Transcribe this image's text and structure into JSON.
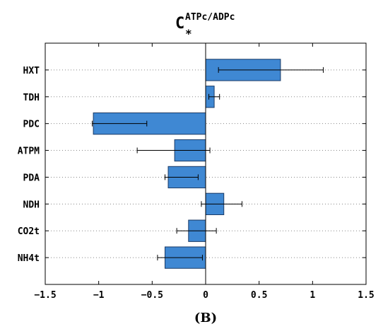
{
  "chart_data": {
    "type": "bar",
    "orientation": "horizontal",
    "title": {
      "main": "C",
      "superscript": "ATPc/ADPc",
      "subscript": "*"
    },
    "panel_label": "(B)",
    "categories": [
      "HXT",
      "TDH",
      "PDC",
      "ATPM",
      "PDA",
      "NDH",
      "CO2t",
      "NH4t"
    ],
    "values": [
      0.7,
      0.08,
      -1.05,
      -0.29,
      -0.35,
      0.17,
      -0.16,
      -0.38
    ],
    "error_low": [
      0.12,
      0.03,
      -1.06,
      -0.64,
      -0.38,
      -0.04,
      -0.27,
      -0.45
    ],
    "error_high": [
      1.1,
      0.13,
      -0.55,
      0.04,
      -0.07,
      0.34,
      0.1,
      -0.03
    ],
    "xlim": [
      -1.5,
      1.5
    ],
    "xticks": [
      -1.5,
      -1,
      -0.5,
      0,
      0.5,
      1,
      1.5
    ],
    "xtick_labels": [
      "−1.5",
      "−1",
      "−0.5",
      "0",
      "0.5",
      "1",
      "1.5"
    ],
    "grid": "y-dotted",
    "legend": "none",
    "bar_color": "#3f88d3",
    "bar_edge_color": "#1a3a66"
  }
}
